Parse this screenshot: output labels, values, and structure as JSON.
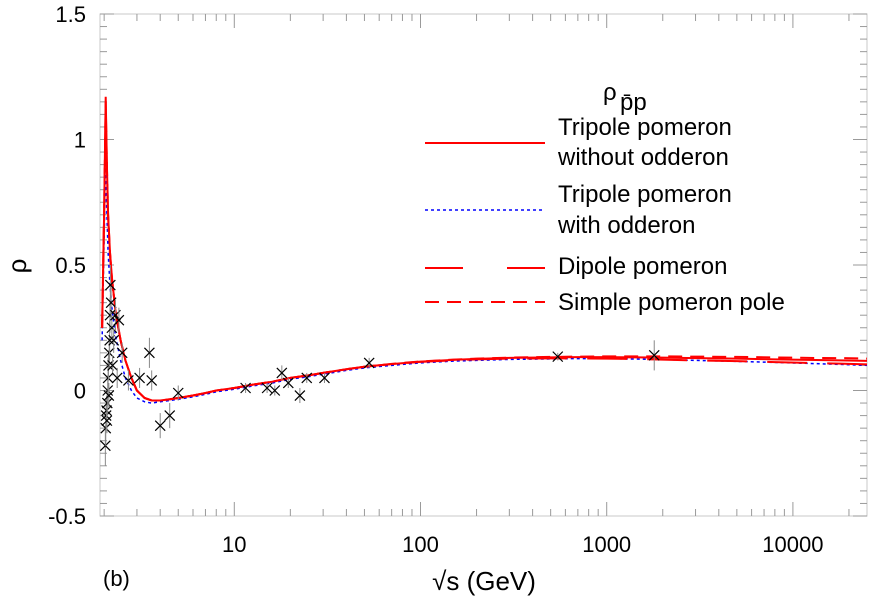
{
  "chart_data": {
    "type": "line",
    "panel_label": "(b)",
    "xlabel": "√s (GeV)",
    "ylabel": "ρ",
    "x_scale": "log",
    "xlim": [
      1.9,
      25000
    ],
    "ylim": [
      -0.5,
      1.5
    ],
    "grid": false,
    "x_tick_labels": [
      {
        "value": 10,
        "label": "10"
      },
      {
        "value": 100,
        "label": "100"
      },
      {
        "value": 1000,
        "label": "1000"
      },
      {
        "value": 10000,
        "label": "10000"
      }
    ],
    "y_tick_labels": [
      {
        "value": -0.5,
        "label": "-0.5"
      },
      {
        "value": 0,
        "label": "0"
      },
      {
        "value": 0.5,
        "label": "0.5"
      },
      {
        "value": 1,
        "label": "1"
      },
      {
        "value": 1.5,
        "label": "1.5"
      }
    ],
    "legend": {
      "title": "ρ",
      "title_subscript": "p̄p",
      "placement": "top-right",
      "entries": [
        {
          "line1": "Tripole pomeron",
          "line2": "without odderon",
          "style": "solid",
          "color": "#ff0000"
        },
        {
          "line1": "Tripole pomeron",
          "line2": "with odderon",
          "style": "dotted",
          "color": "#0000ff"
        },
        {
          "line1": "Dipole pomeron",
          "line2": "",
          "style": "long-dash",
          "color": "#ff0000"
        },
        {
          "line1": "Simple pomeron pole",
          "line2": "",
          "style": "dash",
          "color": "#ff0000"
        }
      ]
    },
    "series": [
      {
        "name": "Tripole pomeron without odderon",
        "color": "#ff0000",
        "style": "solid",
        "x": [
          1.95,
          2.0,
          2.04,
          2.07,
          2.1,
          2.15,
          2.2,
          2.3,
          2.45,
          2.6,
          2.8,
          3.0,
          3.3,
          3.6,
          4.0,
          4.5,
          5,
          6,
          7,
          8,
          10,
          13,
          16,
          20,
          25,
          30,
          40,
          50,
          70,
          100,
          150,
          200,
          300,
          500,
          700,
          1000,
          1500,
          2000,
          3000,
          5000,
          8000,
          12000,
          18000,
          25000
        ],
        "y": [
          0.25,
          0.7,
          1.17,
          0.9,
          0.7,
          0.55,
          0.45,
          0.32,
          0.2,
          0.12,
          0.05,
          0.0,
          -0.03,
          -0.04,
          -0.04,
          -0.035,
          -0.03,
          -0.02,
          -0.01,
          0.0,
          0.01,
          0.025,
          0.035,
          0.05,
          0.06,
          0.07,
          0.085,
          0.095,
          0.105,
          0.115,
          0.122,
          0.126,
          0.13,
          0.132,
          0.133,
          0.133,
          0.132,
          0.131,
          0.129,
          0.127,
          0.124,
          0.122,
          0.12,
          0.118
        ]
      },
      {
        "name": "Tripole pomeron with odderon",
        "color": "#0000ff",
        "style": "dotted",
        "x": [
          1.95,
          2.0,
          2.04,
          2.07,
          2.1,
          2.15,
          2.2,
          2.3,
          2.45,
          2.6,
          2.8,
          3.0,
          3.3,
          3.6,
          4.0,
          4.5,
          5,
          6,
          7,
          8,
          10,
          13,
          16,
          20,
          25,
          30,
          40,
          50,
          70,
          100,
          150,
          200,
          300,
          500,
          700,
          1000,
          1500,
          2000,
          3000,
          5000,
          8000,
          12000,
          18000,
          25000
        ],
        "y": [
          0.2,
          0.6,
          0.9,
          0.7,
          0.55,
          0.42,
          0.33,
          0.22,
          0.12,
          0.05,
          0.0,
          -0.03,
          -0.045,
          -0.05,
          -0.045,
          -0.04,
          -0.035,
          -0.025,
          -0.015,
          -0.005,
          0.005,
          0.02,
          0.03,
          0.045,
          0.055,
          0.065,
          0.08,
          0.09,
          0.1,
          0.11,
          0.117,
          0.12,
          0.124,
          0.126,
          0.127,
          0.127,
          0.125,
          0.123,
          0.12,
          0.116,
          0.112,
          0.108,
          0.104,
          0.1
        ]
      },
      {
        "name": "Dipole pomeron",
        "color": "#ff0000",
        "style": "long-dash",
        "x": [
          1.95,
          2.0,
          2.04,
          2.07,
          2.1,
          2.15,
          2.2,
          2.3,
          2.45,
          2.6,
          2.8,
          3.0,
          3.3,
          3.6,
          4.0,
          4.5,
          5,
          6,
          7,
          8,
          10,
          13,
          16,
          20,
          25,
          30,
          40,
          50,
          70,
          100,
          150,
          200,
          300,
          500,
          700,
          1000,
          1500,
          2000,
          3000,
          5000,
          8000,
          12000,
          18000,
          25000
        ],
        "y": [
          0.25,
          0.7,
          1.12,
          0.88,
          0.69,
          0.54,
          0.44,
          0.31,
          0.2,
          0.12,
          0.05,
          0.0,
          -0.03,
          -0.04,
          -0.04,
          -0.035,
          -0.03,
          -0.02,
          -0.01,
          0.0,
          0.01,
          0.025,
          0.035,
          0.05,
          0.06,
          0.07,
          0.085,
          0.095,
          0.105,
          0.114,
          0.12,
          0.124,
          0.127,
          0.128,
          0.128,
          0.127,
          0.125,
          0.123,
          0.12,
          0.117,
          0.113,
          0.11,
          0.107,
          0.104
        ]
      },
      {
        "name": "Simple pomeron pole",
        "color": "#ff0000",
        "style": "dash",
        "x": [
          1.95,
          2.0,
          2.04,
          2.07,
          2.1,
          2.15,
          2.2,
          2.3,
          2.45,
          2.6,
          2.8,
          3.0,
          3.3,
          3.6,
          4.0,
          4.5,
          5,
          6,
          7,
          8,
          10,
          13,
          16,
          20,
          25,
          30,
          40,
          50,
          70,
          100,
          150,
          200,
          300,
          500,
          700,
          1000,
          1500,
          2000,
          3000,
          5000,
          8000,
          12000,
          18000,
          25000
        ],
        "y": [
          0.25,
          0.7,
          1.15,
          0.89,
          0.7,
          0.55,
          0.45,
          0.32,
          0.2,
          0.12,
          0.05,
          0.0,
          -0.03,
          -0.04,
          -0.04,
          -0.035,
          -0.03,
          -0.02,
          -0.01,
          0.0,
          0.01,
          0.025,
          0.035,
          0.05,
          0.06,
          0.07,
          0.085,
          0.095,
          0.106,
          0.116,
          0.123,
          0.127,
          0.131,
          0.134,
          0.135,
          0.136,
          0.136,
          0.136,
          0.135,
          0.134,
          0.132,
          0.13,
          0.129,
          0.127
        ]
      }
    ],
    "data_points": {
      "marker": "x",
      "color": "#000000",
      "points": [
        {
          "x": 2.03,
          "y": -0.22,
          "err": 0.08
        },
        {
          "x": 2.04,
          "y": -0.15,
          "err": 0.07
        },
        {
          "x": 2.05,
          "y": -0.1,
          "err": 0.06
        },
        {
          "x": 2.06,
          "y": -0.08,
          "err": 0.06
        },
        {
          "x": 2.07,
          "y": -0.12,
          "err": 0.05
        },
        {
          "x": 2.08,
          "y": -0.05,
          "err": 0.05
        },
        {
          "x": 2.09,
          "y": 0.0,
          "err": 0.06
        },
        {
          "x": 2.1,
          "y": 0.05,
          "err": 0.08
        },
        {
          "x": 2.11,
          "y": 0.1,
          "err": 0.06
        },
        {
          "x": 2.12,
          "y": -0.02,
          "err": 0.05
        },
        {
          "x": 2.13,
          "y": 0.15,
          "err": 0.06
        },
        {
          "x": 2.14,
          "y": 0.2,
          "err": 0.08
        },
        {
          "x": 2.15,
          "y": 0.3,
          "err": 0.07
        },
        {
          "x": 2.16,
          "y": 0.42,
          "err": 0.08
        },
        {
          "x": 2.18,
          "y": 0.35,
          "err": 0.06
        },
        {
          "x": 2.2,
          "y": 0.25,
          "err": 0.05
        },
        {
          "x": 2.22,
          "y": 0.1,
          "err": 0.04
        },
        {
          "x": 2.25,
          "y": 0.2,
          "err": 0.05
        },
        {
          "x": 2.3,
          "y": 0.3,
          "err": 0.06
        },
        {
          "x": 2.35,
          "y": 0.05,
          "err": 0.04
        },
        {
          "x": 2.4,
          "y": 0.28,
          "err": 0.05
        },
        {
          "x": 2.5,
          "y": 0.15,
          "err": 0.04
        },
        {
          "x": 2.7,
          "y": 0.04,
          "err": 0.04
        },
        {
          "x": 3.1,
          "y": 0.05,
          "err": 0.04
        },
        {
          "x": 3.5,
          "y": 0.15,
          "err": 0.06
        },
        {
          "x": 3.6,
          "y": 0.04,
          "err": 0.04
        },
        {
          "x": 4.0,
          "y": -0.14,
          "err": 0.05
        },
        {
          "x": 4.5,
          "y": -0.1,
          "err": 0.05
        },
        {
          "x": 5.0,
          "y": -0.01,
          "err": 0.03
        },
        {
          "x": 11.5,
          "y": 0.01,
          "err": 0.02
        },
        {
          "x": 15.0,
          "y": 0.01,
          "err": 0.02
        },
        {
          "x": 16.5,
          "y": 0.0,
          "err": 0.02
        },
        {
          "x": 18.0,
          "y": 0.07,
          "err": 0.03
        },
        {
          "x": 19.5,
          "y": 0.03,
          "err": 0.02
        },
        {
          "x": 22.5,
          "y": -0.02,
          "err": 0.03
        },
        {
          "x": 24.5,
          "y": 0.05,
          "err": 0.02
        },
        {
          "x": 30.5,
          "y": 0.05,
          "err": 0.02
        },
        {
          "x": 53.0,
          "y": 0.11,
          "err": 0.02
        },
        {
          "x": 546,
          "y": 0.135,
          "err": 0.015
        },
        {
          "x": 1800,
          "y": 0.14,
          "err": 0.06
        }
      ]
    }
  }
}
